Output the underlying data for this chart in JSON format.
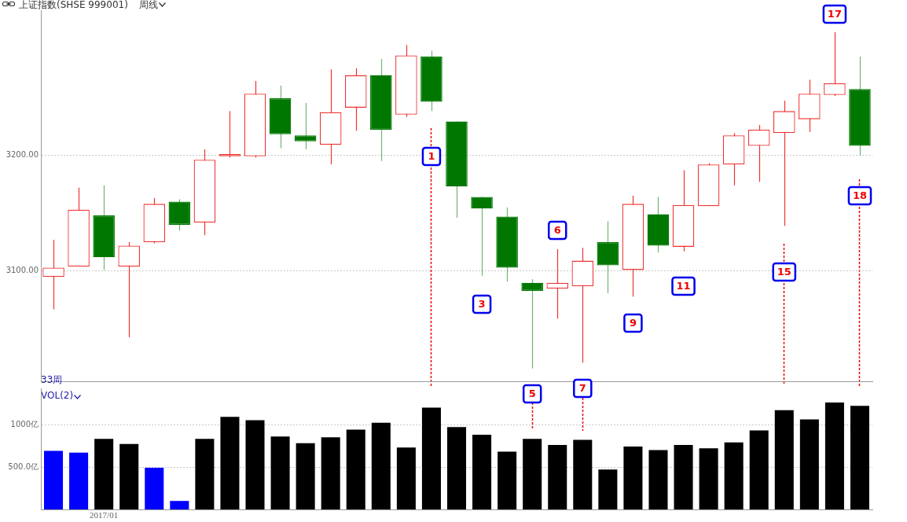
{
  "chart_data": [
    {
      "type": "candlestick",
      "title": "上证指数(SHSE 999001)",
      "subtitle": "周线",
      "categories": [
        null,
        null,
        null,
        null,
        null,
        null,
        null,
        null,
        null,
        null,
        null,
        null,
        null,
        null,
        null,
        null,
        null,
        null,
        null,
        null,
        null,
        null,
        null,
        null,
        null,
        null,
        null,
        null,
        null,
        null,
        null,
        null,
        null
      ],
      "ohlc": [
        [
          3095,
          3127,
          3067,
          3103
        ],
        [
          3104,
          3172,
          3104,
          3153
        ],
        [
          3148,
          3174,
          3101,
          3112
        ],
        [
          3104,
          3125,
          3043,
          3122
        ],
        [
          3125,
          3163,
          3124,
          3158
        ],
        [
          3160,
          3162,
          3135,
          3140
        ],
        [
          3142,
          3205,
          3131,
          3196
        ],
        [
          3199,
          3238,
          3198,
          3201
        ],
        [
          3199,
          3264,
          3198,
          3253
        ],
        [
          3249,
          3260,
          3206,
          3218
        ],
        [
          3217,
          3245,
          3205,
          3212
        ],
        [
          3209,
          3274,
          3192,
          3237
        ],
        [
          3241,
          3275,
          3221,
          3269
        ],
        [
          3269,
          3283,
          3195,
          3222
        ],
        [
          3235,
          3295,
          3233,
          3286
        ],
        [
          3285,
          3290,
          3238,
          3246
        ],
        [
          3229,
          3229,
          3146,
          3173
        ],
        [
          3164,
          3164,
          3096,
          3154
        ],
        [
          3147,
          3155,
          3091,
          3103
        ],
        [
          3090,
          3093,
          3016,
          3083
        ],
        [
          3085,
          3119,
          3059,
          3090
        ],
        [
          3087,
          3120,
          3021,
          3109
        ],
        [
          3125,
          3143,
          3081,
          3105
        ],
        [
          3101,
          3165,
          3078,
          3158
        ],
        [
          3149,
          3164,
          3116,
          3122
        ],
        [
          3121,
          3187,
          3117,
          3157
        ],
        [
          3156,
          3193,
          3156,
          3192
        ],
        [
          3192,
          3219,
          3174,
          3217
        ],
        [
          3208,
          3226,
          3177,
          3222
        ],
        [
          3219,
          3247,
          3139,
          3238
        ],
        [
          3231,
          3265,
          3220,
          3253
        ],
        [
          3252,
          3306,
          3251,
          3262
        ],
        [
          3257,
          3285,
          3200,
          3208
        ]
      ],
      "colors": [
        "#ee3333",
        "#ee3333",
        "#007700",
        "#ee3333",
        "#ee3333",
        "#007700",
        "#ee3333",
        "#ee3333",
        "#ee3333",
        "#007700",
        "#007700",
        "#ee3333",
        "#ee3333",
        "#007700",
        "#ee3333",
        "#007700",
        "#007700",
        "#007700",
        "#007700",
        "#007700",
        "#ee3333",
        "#ee3333",
        "#007700",
        "#ee3333",
        "#007700",
        "#ee3333",
        "#ee3333",
        "#ee3333",
        "#ee3333",
        "#ee3333",
        "#ee3333",
        "#ee3333",
        "#007700"
      ],
      "ylim": [
        3005,
        3325
      ],
      "yticks": [
        {
          "value": 3100,
          "label": "3100.00"
        },
        {
          "value": 3200,
          "label": "3200.00"
        }
      ],
      "grid": "y",
      "tick_labels": "y",
      "annotations": [
        "1",
        "3",
        "6",
        "9",
        "11",
        "15",
        "17",
        "18",
        "33周"
      ]
    },
    {
      "type": "bar",
      "title": "VOL(2)",
      "categories": [
        null,
        null,
        "2017/01",
        null,
        null,
        null,
        null,
        null,
        null,
        null,
        null,
        null,
        null,
        null,
        null,
        null,
        null,
        null,
        null,
        null,
        null,
        null,
        null,
        null,
        null,
        null,
        null,
        null,
        null,
        null,
        null,
        null,
        null
      ],
      "values": [
        690,
        670,
        830,
        770,
        490,
        100,
        830,
        1090,
        1050,
        860,
        780,
        850,
        940,
        1020,
        730,
        1200,
        970,
        880,
        680,
        830,
        760,
        820,
        470,
        740,
        700,
        760,
        720,
        790,
        930,
        1170,
        1060,
        1260,
        1220
      ],
      "colors": [
        "#0000ff",
        "#0000ff",
        "#000000",
        "#000000",
        "#0000ff",
        "#0000ff",
        "#000000",
        "#000000",
        "#000000",
        "#000000",
        "#000000",
        "#000000",
        "#000000",
        "#000000",
        "#000000",
        "#000000",
        "#000000",
        "#000000",
        "#000000",
        "#000000",
        "#000000",
        "#000000",
        "#000000",
        "#000000",
        "#000000",
        "#000000",
        "#000000",
        "#000000",
        "#000000",
        "#000000",
        "#000000",
        "#000000",
        "#000000"
      ],
      "ylim": [
        0,
        1426
      ],
      "yticks": [
        {
          "value": 500,
          "label": "500.0亿"
        },
        {
          "value": 1000,
          "label": "1000亿"
        }
      ],
      "grid": "y",
      "annotations": [
        "5",
        "7"
      ]
    }
  ]
}
